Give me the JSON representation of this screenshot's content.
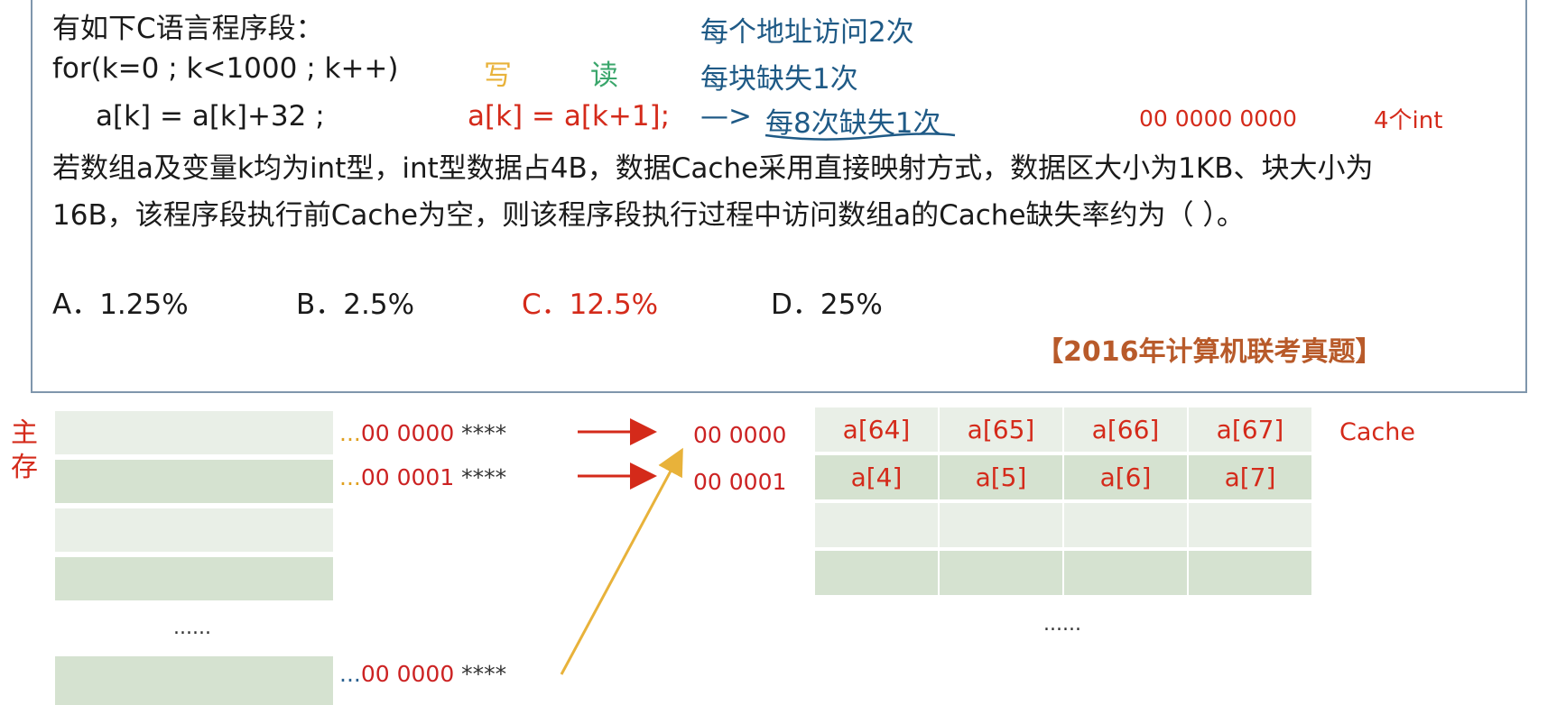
{
  "question": {
    "line1": "有如下C语言程序段：",
    "line2": "for(k=0 ; k<1000 ; k++)",
    "line3": "a[k] = a[k]+32 ;",
    "line4": "若数组a及变量k均为int型，int型数据占4B，数据Cache采用直接映射方式，数据区大小为1KB、块大小为",
    "line5": "16B，该程序段执行前Cache为空，则该程序段执行过程中访问数组a的Cache缺失率约为（      ）。",
    "options": [
      "A．1.25%",
      "B．2.5%",
      "C．12.5%",
      "D．25%"
    ],
    "source": "【2016年计算机联考真题】"
  },
  "annotations": {
    "access_twice": "每个地址访问2次",
    "miss_once_per_block": "每块缺失1次",
    "write_label": "写",
    "read_label": "读",
    "equivalent_code": "a[k] = a[k+1];",
    "arrow_text": "—> ",
    "miss_rate_note": "每8次缺失1次",
    "offset_bits": "00 0000 0000",
    "ints_per_block": "4个int"
  },
  "main_memory": {
    "label": "主存",
    "addresses": [
      {
        "prefix": "...",
        "bits": "00 0000 ",
        "stars": "****"
      },
      {
        "prefix": "...",
        "bits": "00 0001 ",
        "stars": "****"
      },
      {
        "prefix": "...",
        "bits": "00 0000 ",
        "stars": "****"
      }
    ],
    "ellipsis": "......"
  },
  "cache": {
    "label": "Cache",
    "line_indices": [
      "00 0000",
      "00 0001"
    ],
    "rows": [
      [
        "a[64]",
        "a[65]",
        "a[66]",
        "a[67]"
      ],
      [
        "a[4]",
        "a[5]",
        "a[6]",
        "a[7]"
      ]
    ],
    "ellipsis": "......"
  },
  "colors": {
    "red": "#d42a1a",
    "blue": "#1f5a86",
    "orange": "#e8b23a",
    "green": "#3aa66b",
    "panel_border": "#7f96ac",
    "block_light": "#e9efe7",
    "block_dark": "#d5e2d0"
  }
}
